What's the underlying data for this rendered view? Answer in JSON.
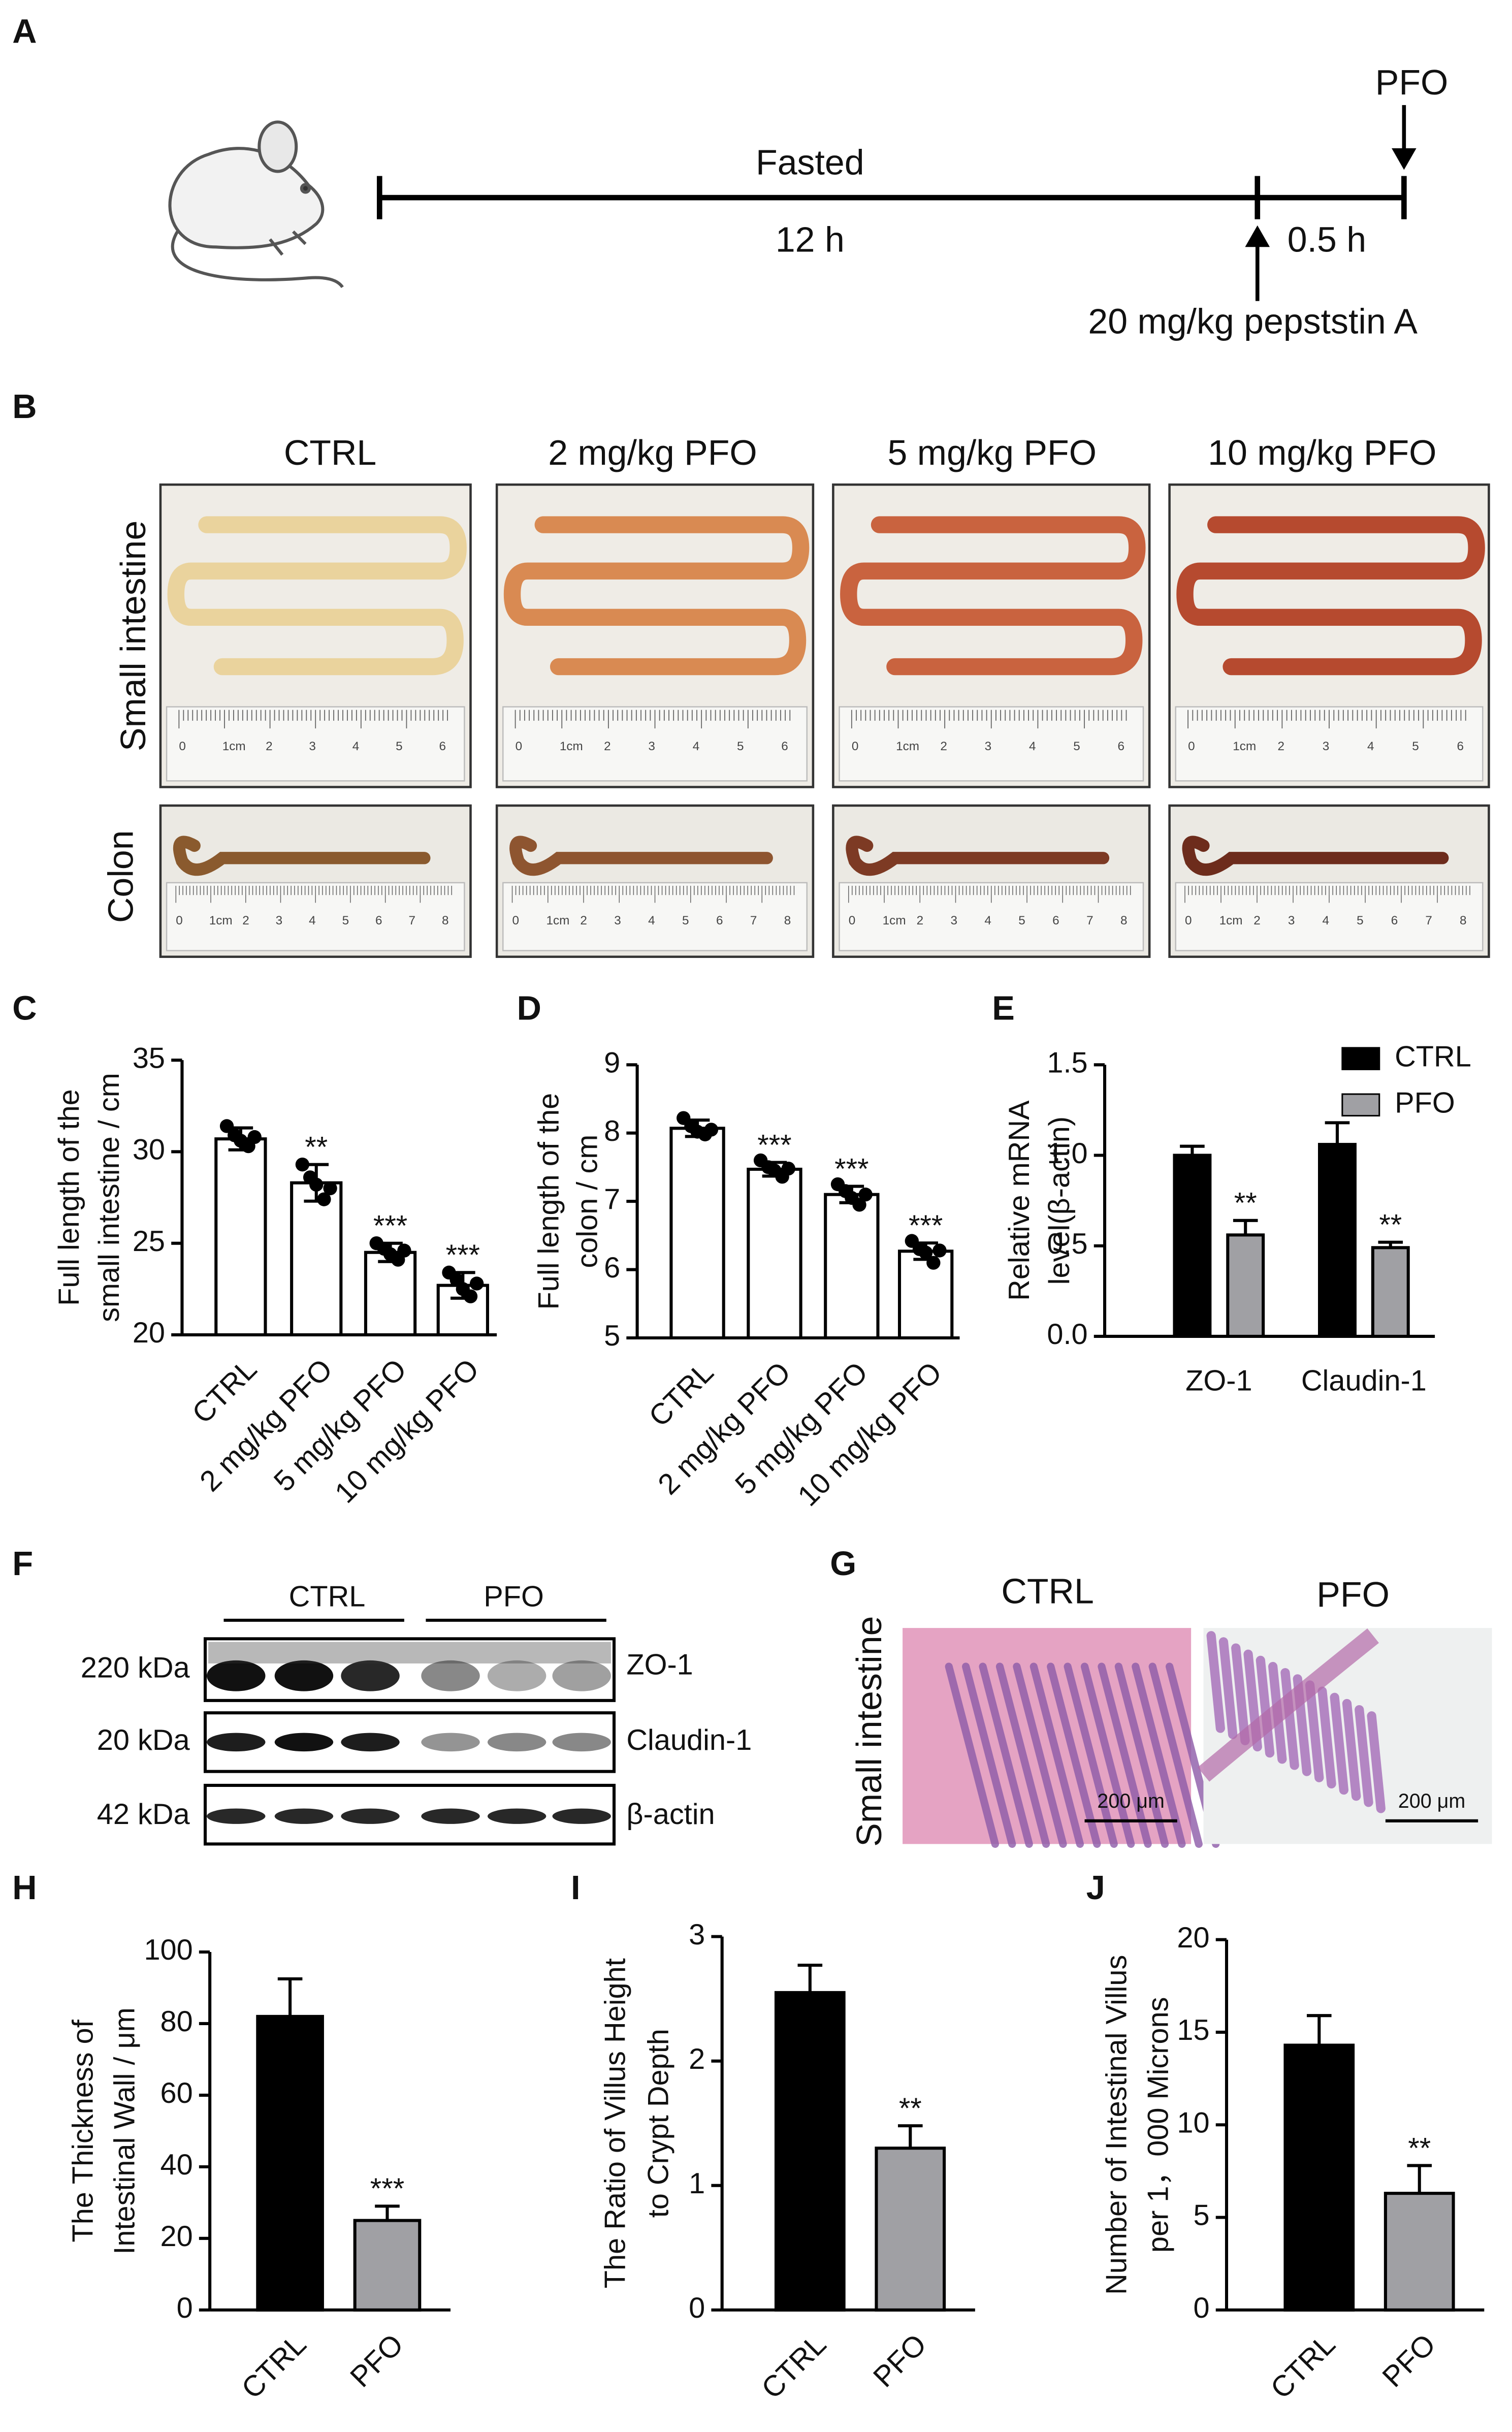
{
  "panel_labels": [
    "A",
    "B",
    "C",
    "D",
    "E",
    "F",
    "G",
    "H",
    "I",
    "J"
  ],
  "timeline": {
    "fasted": "Fasted",
    "fasted_time": "12 h",
    "inhibitor_time": "0.5 h",
    "treatment": "PFO",
    "inhibitor": "20 mg/kg pepststin A"
  },
  "photos": {
    "column_titles": [
      "CTRL",
      "2 mg/kg PFO",
      "5 mg/kg PFO",
      "10 mg/kg PFO"
    ],
    "row_labels": [
      "Small intestine",
      "Colon"
    ],
    "ruler_small": [
      "0",
      "1cm",
      "2",
      "3",
      "4",
      "5",
      "6"
    ],
    "ruler_colon": [
      "0",
      "1cm",
      "2",
      "3",
      "4",
      "5",
      "6",
      "7",
      "8"
    ]
  },
  "western_blot": {
    "groups": [
      "CTRL",
      "PFO"
    ],
    "markers": [
      "220 kDa",
      "20 kDa",
      "42 kDa"
    ],
    "proteins": [
      "ZO-1",
      "Claudin-1",
      "β-actin"
    ]
  },
  "histology": {
    "columns": [
      "CTRL",
      "PFO"
    ],
    "row_label": "Small intestine",
    "scale_bar": "200 μm"
  },
  "chart_data": [
    {
      "type": "bar",
      "ylabel": [
        "Full length of the",
        "small intestine / cm"
      ],
      "categories": [
        "CTRL",
        "2 mg/kg PFO",
        "5 mg/kg PFO",
        "10 mg/kg PFO"
      ],
      "values": [
        30.7,
        28.3,
        24.5,
        22.7
      ],
      "errors": [
        0.6,
        1.0,
        0.5,
        0.7
      ],
      "points": [
        [
          31.4,
          30.9,
          30.6,
          30.3,
          30.8
        ],
        [
          29.3,
          28.6,
          28.2,
          27.4,
          28.0
        ],
        [
          25.0,
          24.7,
          24.4,
          24.1,
          24.6
        ],
        [
          23.4,
          23.0,
          22.5,
          22.1,
          22.8
        ]
      ],
      "annotations": [
        null,
        "**",
        "***",
        "***"
      ],
      "color": "#ffffff",
      "ylim": [
        20,
        35
      ],
      "yticks": [
        20,
        25,
        30,
        35
      ]
    },
    {
      "type": "bar",
      "ylabel": [
        "Full length of the",
        "colon / cm"
      ],
      "categories": [
        "CTRL",
        "2 mg/kg PFO",
        "5 mg/kg PFO",
        "10 mg/kg PFO"
      ],
      "values": [
        8.07,
        7.47,
        7.1,
        6.27
      ],
      "errors": [
        0.12,
        0.1,
        0.12,
        0.12
      ],
      "points": [
        [
          8.22,
          8.1,
          8.02,
          7.98,
          8.05
        ],
        [
          7.6,
          7.5,
          7.45,
          7.36,
          7.48
        ],
        [
          7.25,
          7.15,
          7.05,
          6.95,
          7.1
        ],
        [
          6.42,
          6.3,
          6.25,
          6.1,
          6.28
        ]
      ],
      "annotations": [
        null,
        "***",
        "***",
        "***"
      ],
      "color": "#ffffff",
      "ylim": [
        5,
        9
      ],
      "yticks": [
        5,
        6,
        7,
        8,
        9
      ]
    },
    {
      "type": "grouped_bar",
      "ylabel": [
        "Relative mRNA",
        "level(β-actin)"
      ],
      "categories": [
        "ZO-1",
        "Claudin-1"
      ],
      "series": [
        {
          "name": "CTRL",
          "color": "#000000",
          "values": [
            1.0,
            1.06
          ],
          "errors": [
            0.05,
            0.12
          ],
          "annotations": [
            null,
            null
          ]
        },
        {
          "name": "PFO",
          "color": "#a0a0a4",
          "values": [
            0.56,
            0.49
          ],
          "errors": [
            0.08,
            0.03
          ],
          "annotations": [
            "**",
            "**"
          ]
        }
      ],
      "ylim": [
        0,
        1.5
      ],
      "yticks": [
        {
          "value": 0,
          "label": "0.0"
        },
        0.5,
        {
          "value": 1,
          "label": "1.0"
        },
        1.5
      ]
    },
    {
      "type": "bar",
      "ylabel": [
        "The Thickness of",
        "Intestinal Wall / μm"
      ],
      "categories": [
        "CTRL",
        "PFO"
      ],
      "values": [
        82,
        25
      ],
      "errors": [
        10.5,
        4
      ],
      "annotations": [
        null,
        "***"
      ],
      "colors": [
        "#000000",
        "#a0a0a4"
      ],
      "ylim": [
        0,
        100
      ],
      "yticks": [
        0,
        20,
        40,
        60,
        80,
        100
      ]
    },
    {
      "type": "bar",
      "ylabel": [
        "The Ratio of Villus Height",
        "to Crypt Depth"
      ],
      "categories": [
        "CTRL",
        "PFO"
      ],
      "values": [
        2.55,
        1.3
      ],
      "errors": [
        0.22,
        0.18
      ],
      "annotations": [
        null,
        "**"
      ],
      "colors": [
        "#000000",
        "#a0a0a4"
      ],
      "ylim": [
        0,
        3
      ],
      "yticks": [
        0,
        1,
        2,
        3
      ]
    },
    {
      "type": "bar",
      "ylabel": [
        "Number of Intestinal Villus",
        "per 1，000 Microns"
      ],
      "categories": [
        "CTRL",
        "PFO"
      ],
      "values": [
        14.3,
        6.3
      ],
      "errors": [
        1.6,
        1.5
      ],
      "annotations": [
        null,
        "**"
      ],
      "colors": [
        "#000000",
        "#a0a0a4"
      ],
      "ylim": [
        0,
        20
      ],
      "yticks": [
        0,
        5,
        10,
        15,
        20
      ]
    }
  ]
}
